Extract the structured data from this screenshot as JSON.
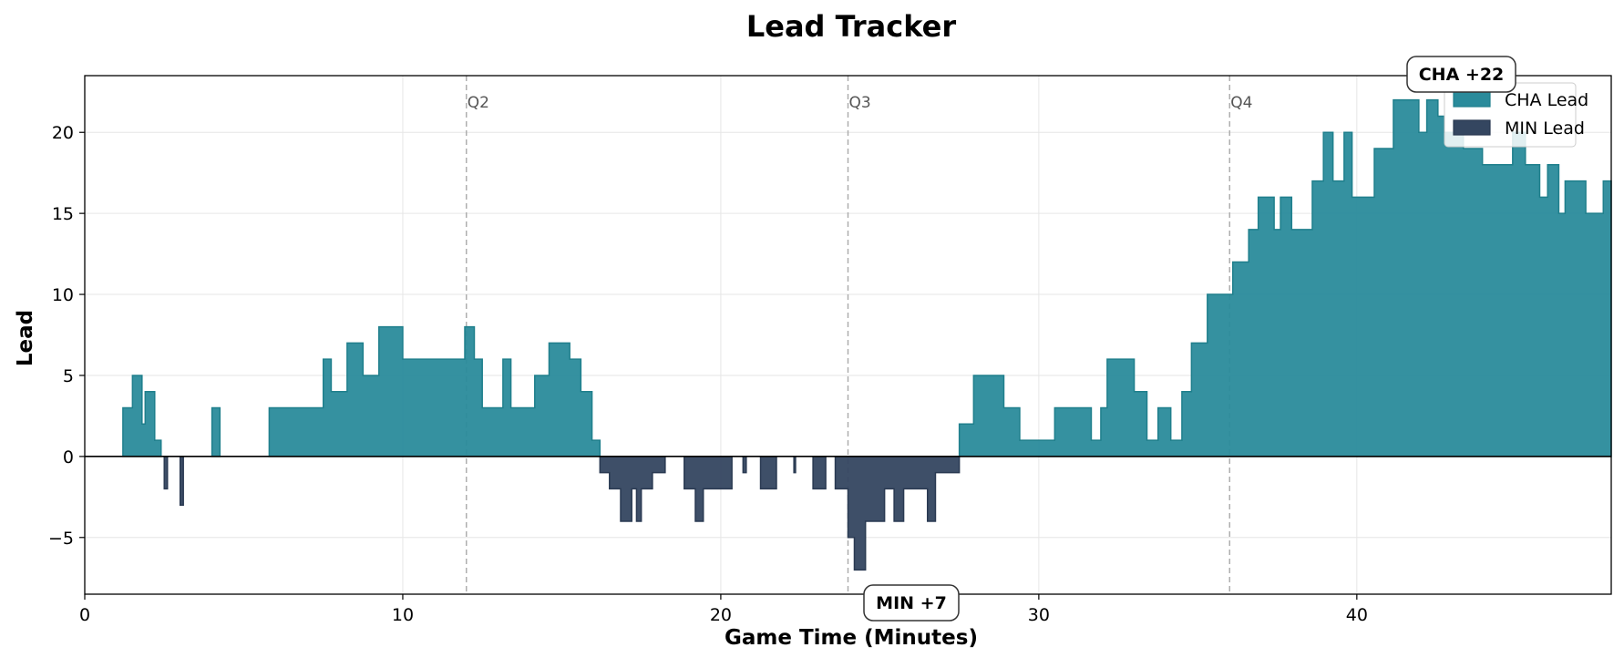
{
  "chart_data": {
    "type": "area",
    "title": "Lead Tracker",
    "xlabel": "Game Time (Minutes)",
    "ylabel": "Lead",
    "xlim": [
      0,
      48
    ],
    "ylim": [
      -8.5,
      23.5
    ],
    "x_ticks": [
      0,
      10,
      20,
      30,
      40
    ],
    "y_ticks": [
      -5,
      0,
      5,
      10,
      15,
      20
    ],
    "y_tick_labels": [
      "−5",
      "0",
      "5",
      "10",
      "15",
      "20"
    ],
    "grid": true,
    "legend_position": "top-right",
    "quarter_markers": [
      {
        "x": 12,
        "label": "Q2"
      },
      {
        "x": 24,
        "label": "Q3"
      },
      {
        "x": 36,
        "label": "Q4"
      }
    ],
    "series": [
      {
        "name": "CHA Lead",
        "color": "#2a8b9b",
        "edge_color": "#1f7f8c",
        "sign": "positive"
      },
      {
        "name": "MIN Lead",
        "color": "#344660",
        "edge_color": "#2a3a52",
        "sign": "negative"
      }
    ],
    "annotations": [
      {
        "text": "CHA +22",
        "x": 42.5,
        "y": 22
      },
      {
        "text": "MIN +7",
        "x": 25.0,
        "y": -7
      }
    ],
    "lead_steps": [
      [
        0,
        0
      ],
      [
        1.2,
        3
      ],
      [
        1.5,
        5
      ],
      [
        1.8,
        2
      ],
      [
        1.9,
        4
      ],
      [
        2.2,
        1
      ],
      [
        2.4,
        0
      ],
      [
        2.5,
        -2
      ],
      [
        2.6,
        0
      ],
      [
        3.0,
        -3
      ],
      [
        3.1,
        0
      ],
      [
        4.0,
        3
      ],
      [
        4.25,
        0
      ],
      [
        5.8,
        3
      ],
      [
        7.5,
        6
      ],
      [
        7.75,
        4
      ],
      [
        8.25,
        7
      ],
      [
        8.75,
        5
      ],
      [
        9.25,
        8
      ],
      [
        10.0,
        6
      ],
      [
        11.95,
        8
      ],
      [
        12.25,
        6
      ],
      [
        12.5,
        3
      ],
      [
        13.15,
        6
      ],
      [
        13.4,
        3
      ],
      [
        14.15,
        5
      ],
      [
        14.6,
        7
      ],
      [
        15.25,
        6
      ],
      [
        15.6,
        4
      ],
      [
        15.95,
        1
      ],
      [
        16.2,
        -1
      ],
      [
        16.5,
        -2
      ],
      [
        16.85,
        -4
      ],
      [
        17.2,
        -2
      ],
      [
        17.35,
        -4
      ],
      [
        17.5,
        -2
      ],
      [
        17.85,
        -1
      ],
      [
        18.25,
        0
      ],
      [
        18.85,
        -2
      ],
      [
        19.2,
        -4
      ],
      [
        19.45,
        -2
      ],
      [
        20.35,
        0
      ],
      [
        20.7,
        -1
      ],
      [
        20.8,
        0
      ],
      [
        21.25,
        -2
      ],
      [
        21.75,
        0
      ],
      [
        22.3,
        -1
      ],
      [
        22.35,
        0
      ],
      [
        22.9,
        -2
      ],
      [
        23.3,
        0
      ],
      [
        23.6,
        -2
      ],
      [
        24.0,
        -5
      ],
      [
        24.2,
        -7
      ],
      [
        24.55,
        -4
      ],
      [
        25.15,
        -2
      ],
      [
        25.45,
        -4
      ],
      [
        25.75,
        -2
      ],
      [
        26.5,
        -4
      ],
      [
        26.75,
        -1
      ],
      [
        27.5,
        2
      ],
      [
        27.95,
        5
      ],
      [
        28.9,
        3
      ],
      [
        29.4,
        1
      ],
      [
        30.5,
        3
      ],
      [
        31.65,
        1
      ],
      [
        31.95,
        3
      ],
      [
        32.15,
        6
      ],
      [
        33.0,
        4
      ],
      [
        33.4,
        1
      ],
      [
        33.75,
        3
      ],
      [
        34.15,
        1
      ],
      [
        34.5,
        4
      ],
      [
        34.8,
        7
      ],
      [
        35.3,
        10
      ],
      [
        36.1,
        12
      ],
      [
        36.6,
        14
      ],
      [
        36.9,
        16
      ],
      [
        37.4,
        14
      ],
      [
        37.6,
        16
      ],
      [
        37.95,
        14
      ],
      [
        38.6,
        17
      ],
      [
        38.95,
        20
      ],
      [
        39.25,
        17
      ],
      [
        39.6,
        20
      ],
      [
        39.85,
        16
      ],
      [
        40.55,
        19
      ],
      [
        41.15,
        22
      ],
      [
        41.95,
        20
      ],
      [
        42.2,
        22
      ],
      [
        42.55,
        21
      ],
      [
        42.75,
        20
      ],
      [
        43.35,
        19
      ],
      [
        43.95,
        18
      ],
      [
        44.9,
        20
      ],
      [
        45.3,
        18
      ],
      [
        45.75,
        16
      ],
      [
        46.0,
        18
      ],
      [
        46.35,
        15
      ],
      [
        46.55,
        17
      ],
      [
        47.2,
        15
      ],
      [
        47.75,
        17
      ],
      [
        48.0,
        17
      ]
    ]
  }
}
